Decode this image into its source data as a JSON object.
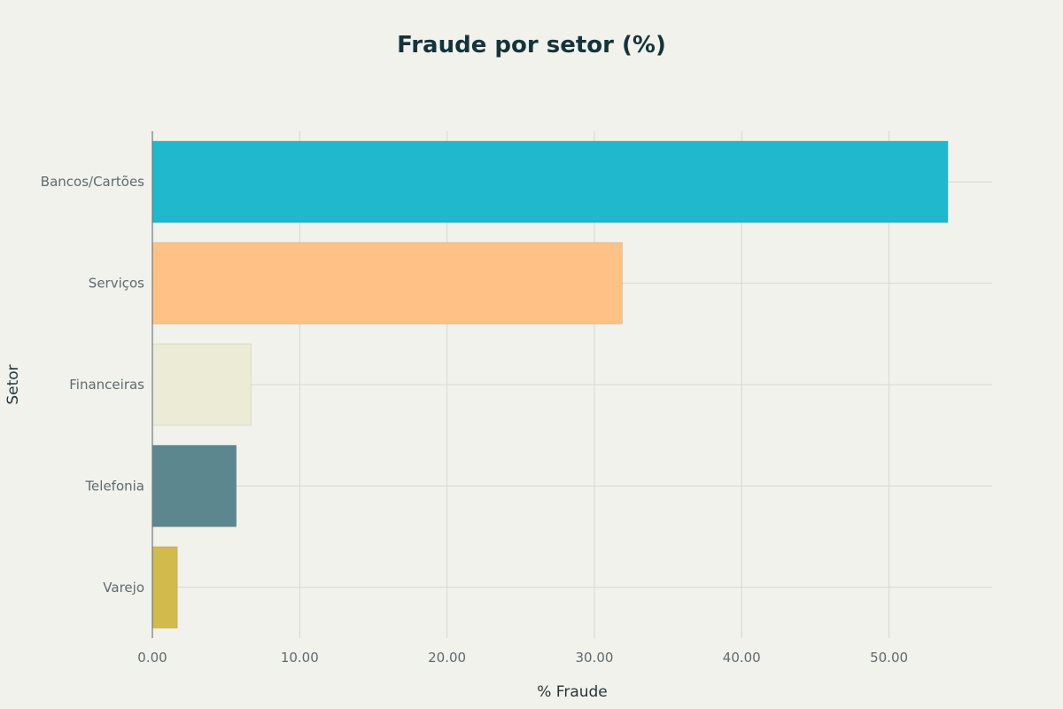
{
  "chart_data": {
    "type": "bar",
    "orientation": "horizontal",
    "title": "Fraude por setor (%)",
    "xlabel": "% Fraude",
    "ylabel": "Setor",
    "categories": [
      "Bancos/Cartões",
      "Serviços",
      "Financeiras",
      "Telefonia",
      "Varejo"
    ],
    "values": [
      54.0,
      31.9,
      6.7,
      5.7,
      1.7
    ],
    "colors": [
      "#1fb8cd",
      "#ffc185",
      "#ecebd5",
      "#5d878f",
      "#d2ba4c"
    ],
    "xlim": [
      0,
      57
    ],
    "xticks": [
      0,
      10,
      20,
      30,
      40,
      50
    ],
    "xtick_labels": [
      "0.00",
      "10.00",
      "20.00",
      "30.00",
      "40.00",
      "50.00"
    ],
    "grid": true,
    "legend": "none"
  }
}
